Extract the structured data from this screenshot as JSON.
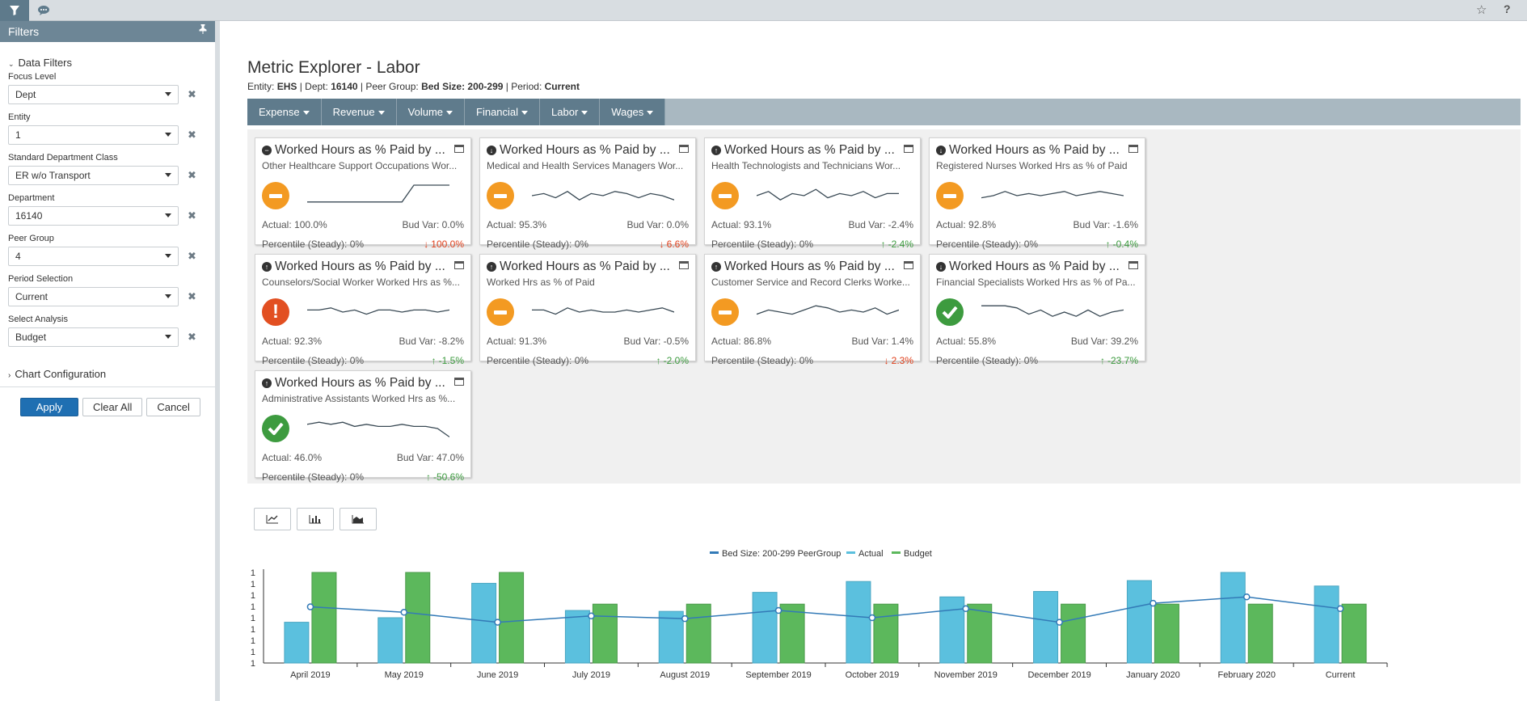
{
  "topbar": {
    "filter_icon": "filter-icon",
    "comment_icon": "comment-icon",
    "star_icon": "star-icon",
    "help_label": "?"
  },
  "sidebar": {
    "header": "Filters",
    "pin_icon": "pin-icon",
    "data_filters_label": "Data Filters",
    "fields": [
      {
        "label": "Focus Level",
        "value": "Dept"
      },
      {
        "label": "Entity",
        "value": "1"
      },
      {
        "label": "Standard Department Class",
        "value": "ER w/o Transport"
      },
      {
        "label": "Department",
        "value": "16140"
      },
      {
        "label": "Peer Group",
        "value": "4"
      },
      {
        "label": "Period Selection",
        "value": "Current"
      },
      {
        "label": "Select Analysis",
        "value": "Budget"
      }
    ],
    "chart_config_label": "Chart Configuration",
    "apply_label": "Apply",
    "clear_label": "Clear All",
    "cancel_label": "Cancel",
    "accent": "#1f6fb2"
  },
  "page": {
    "title": "Metric Explorer - Labor",
    "entity_label": "Entity: ",
    "entity_value": "EHS",
    "dept_label": "Dept: ",
    "dept_value": "16140",
    "peer_label": "Peer Group: ",
    "peer_value": "Bed Size: 200-299",
    "period_label": "Period: ",
    "period_value": "Current",
    "sep": " | "
  },
  "nav": [
    "Expense",
    "Revenue",
    "Volume",
    "Financial",
    "Labor",
    "Wages"
  ],
  "tiles": [
    {
      "title": "Worked Hours as % Paid by ...",
      "dir": "neutral",
      "sub": "Other Healthcare Support Occupations Wor...",
      "status": "warn",
      "actual": "Actual: 100.0%",
      "budvar": "Bud Var: 0.0%",
      "percentile": "Percentile (Steady): 0%",
      "change": "100.0%",
      "change_dir": "down",
      "spark": [
        0.2,
        0.2,
        0.2,
        0.2,
        0.2,
        0.2,
        0.2,
        0.2,
        0.2,
        1,
        1,
        1,
        1
      ]
    },
    {
      "title": "Worked Hours as % Paid by ...",
      "dir": "down",
      "sub": "Medical and Health Services Managers Wor...",
      "status": "warn",
      "actual": "Actual: 95.3%",
      "budvar": "Bud Var: 0.0%",
      "percentile": "Percentile (Steady): 0%",
      "change": "6.6%",
      "change_dir": "down",
      "spark": [
        0.5,
        0.6,
        0.4,
        0.7,
        0.3,
        0.6,
        0.5,
        0.7,
        0.6,
        0.4,
        0.6,
        0.5,
        0.3
      ]
    },
    {
      "title": "Worked Hours as % Paid by ...",
      "dir": "up",
      "sub": "Health Technologists and Technicians Wor...",
      "status": "warn",
      "actual": "Actual: 93.1%",
      "budvar": "Bud Var: -2.4%",
      "percentile": "Percentile (Steady): 0%",
      "change": "-2.4%",
      "change_dir": "up",
      "spark": [
        0.5,
        0.7,
        0.3,
        0.6,
        0.5,
        0.8,
        0.4,
        0.6,
        0.5,
        0.7,
        0.4,
        0.6,
        0.6
      ]
    },
    {
      "title": "Worked Hours as % Paid by ...",
      "dir": "down",
      "sub": "Registered Nurses Worked Hrs as % of Paid",
      "status": "warn",
      "actual": "Actual: 92.8%",
      "budvar": "Bud Var: -1.6%",
      "percentile": "Percentile (Steady): 0%",
      "change": "-0.4%",
      "change_dir": "up",
      "spark": [
        0.4,
        0.5,
        0.7,
        0.5,
        0.6,
        0.5,
        0.6,
        0.7,
        0.5,
        0.6,
        0.7,
        0.6,
        0.5
      ]
    },
    {
      "title": "Worked Hours as % Paid by ...",
      "dir": "up",
      "sub": "Counselors/Social Worker Worked Hrs as %...",
      "status": "alert",
      "actual": "Actual: 92.3%",
      "budvar": "Bud Var: -8.2%",
      "percentile": "Percentile (Steady): 0%",
      "change": "-1.5%",
      "change_dir": "up",
      "spark": [
        0.6,
        0.6,
        0.7,
        0.5,
        0.6,
        0.4,
        0.6,
        0.6,
        0.5,
        0.6,
        0.6,
        0.5,
        0.6
      ]
    },
    {
      "title": "Worked Hours as % Paid by ...",
      "dir": "up",
      "sub": "Worked Hrs as % of Paid",
      "status": "warn",
      "actual": "Actual: 91.3%",
      "budvar": "Bud Var: -0.5%",
      "percentile": "Percentile (Steady): 0%",
      "change": "-2.0%",
      "change_dir": "up",
      "spark": [
        0.6,
        0.6,
        0.4,
        0.7,
        0.5,
        0.6,
        0.5,
        0.5,
        0.6,
        0.5,
        0.6,
        0.7,
        0.5
      ]
    },
    {
      "title": "Worked Hours as % Paid by ...",
      "dir": "up",
      "sub": "Customer Service and Record Clerks Worke...",
      "status": "warn",
      "actual": "Actual: 86.8%",
      "budvar": "Bud Var: 1.4%",
      "percentile": "Percentile (Steady): 0%",
      "change": "2.3%",
      "change_dir": "down",
      "spark": [
        0.4,
        0.6,
        0.5,
        0.4,
        0.6,
        0.8,
        0.7,
        0.5,
        0.6,
        0.5,
        0.7,
        0.4,
        0.6
      ]
    },
    {
      "title": "Worked Hours as % Paid by ...",
      "dir": "down",
      "sub": "Financial Specialists Worked Hrs as % of Pa...",
      "status": "good",
      "actual": "Actual: 55.8%",
      "budvar": "Bud Var: 39.2%",
      "percentile": "Percentile (Steady): 0%",
      "change": "-23.7%",
      "change_dir": "up",
      "spark": [
        0.8,
        0.8,
        0.8,
        0.7,
        0.4,
        0.6,
        0.3,
        0.5,
        0.3,
        0.6,
        0.3,
        0.5,
        0.6
      ]
    },
    {
      "title": "Worked Hours as % Paid by ...",
      "dir": "up",
      "sub": "Administrative Assistants Worked Hrs as %...",
      "status": "good",
      "actual": "Actual: 46.0%",
      "budvar": "Bud Var: 47.0%",
      "percentile": "Percentile (Steady): 0%",
      "change": "-50.6%",
      "change_dir": "up",
      "spark": [
        0.7,
        0.8,
        0.7,
        0.8,
        0.6,
        0.7,
        0.6,
        0.6,
        0.7,
        0.6,
        0.6,
        0.5,
        0.1
      ]
    }
  ],
  "chart_buttons": [
    "line-chart-icon",
    "bar-chart-icon",
    "area-chart-icon"
  ],
  "colors": {
    "warn": "#f39a22",
    "alert": "#e24f21",
    "good": "#3d9b3f",
    "actual": "#5bc0de",
    "budget": "#5cb85c",
    "peer": "#337ab7"
  },
  "chart_data": {
    "type": "bar",
    "categories": [
      "April 2019",
      "May 2019",
      "June 2019",
      "July 2019",
      "August 2019",
      "September 2019",
      "October 2019",
      "November 2019",
      "December 2019",
      "January 2020",
      "February 2020",
      "Current"
    ],
    "series": [
      {
        "name": "Bed Size: 200-299 PeerGroup",
        "kind": "line",
        "values": [
          0.62,
          0.56,
          0.45,
          0.52,
          0.49,
          0.58,
          0.5,
          0.6,
          0.45,
          0.66,
          0.73,
          0.6
        ]
      },
      {
        "name": "Actual",
        "kind": "bar",
        "values": [
          0.45,
          0.5,
          0.88,
          0.58,
          0.57,
          0.78,
          0.9,
          0.73,
          0.79,
          0.91,
          1.0,
          0.85
        ]
      },
      {
        "name": "Budget",
        "kind": "bar",
        "values": [
          1.0,
          1.0,
          1.0,
          0.65,
          0.65,
          0.65,
          0.65,
          0.65,
          0.65,
          0.65,
          0.65,
          0.65
        ]
      }
    ],
    "y_ticks": [
      "1",
      "1",
      "1",
      "1",
      "1",
      "1",
      "1",
      "1",
      "1"
    ],
    "legend": "top-center"
  }
}
